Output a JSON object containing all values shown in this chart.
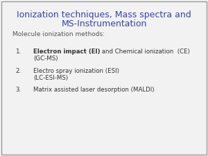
{
  "title_line1": "Ionization techniques, Mass spectra and",
  "title_line2": "MS-Instrumentation",
  "title_color": "#3344aa",
  "subtitle": "Molecule ionization methods:",
  "subtitle_color": "#555555",
  "items": [
    {
      "number": "1.",
      "line1_bold": "Electron impact (EI)",
      "line1_normal": " and Chemical ionization  (CE)",
      "line2": "(GC-MS)"
    },
    {
      "number": "2.",
      "line1_bold": "",
      "line1_normal": "Electro spray ionization (ESI)",
      "line2": "(LC-ESI-MS)"
    },
    {
      "number": "3.",
      "line1_bold": "",
      "line1_normal": "Matrix assisted laser desorption (MALDI)",
      "line2": ""
    }
  ],
  "background_color": "#f2f2f2",
  "text_color": "#333333",
  "border_color": "#999999",
  "title_fontsize": 9.0,
  "subtitle_fontsize": 6.5,
  "item_fontsize": 6.2
}
